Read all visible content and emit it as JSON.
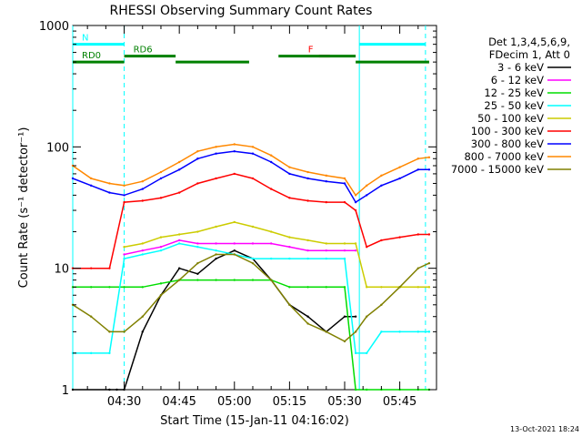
{
  "chart_data": {
    "type": "line",
    "title": "RHESSI Observing Summary Count Rates",
    "xlabel": "Start Time (15-Jan-11 04:16:02)",
    "ylabel": "Count Rate (s⁻¹ detector⁻¹)",
    "yscale": "log",
    "ylim": [
      1,
      1000
    ],
    "xlim": [
      "04:16",
      "05:55"
    ],
    "x_ticks": [
      "04:30",
      "04:45",
      "05:00",
      "05:15",
      "05:30",
      "05:45"
    ],
    "y_ticks": [
      "1",
      "10",
      "100",
      "1000"
    ],
    "legend_header": [
      "Det 1,3,4,5,6,9,",
      "FDecim 1, Att 0"
    ],
    "legend_position": "right",
    "footer_date": "13-Oct-2021 18:24",
    "series": [
      {
        "name": "3 - 6 keV",
        "color": "#000000",
        "x": [
          "04:16",
          "04:26",
          "04:28",
          "04:30",
          "04:35",
          "04:40",
          "04:45",
          "04:50",
          "04:55",
          "05:00",
          "05:05",
          "05:10",
          "05:15",
          "05:20",
          "05:25",
          "05:30",
          "05:33"
        ],
        "y": [
          1,
          1,
          1,
          1,
          3,
          6,
          10,
          9,
          12,
          14,
          12,
          8,
          5,
          4,
          3,
          4,
          4
        ]
      },
      {
        "name": "6 - 12 keV",
        "color": "#ff00ff",
        "x": [
          "04:30",
          "04:35",
          "04:40",
          "04:45",
          "04:50",
          "04:55",
          "05:00",
          "05:05",
          "05:10",
          "05:15",
          "05:20",
          "05:25",
          "05:30",
          "05:33"
        ],
        "y": [
          13,
          14,
          15,
          17,
          16,
          16,
          16,
          16,
          16,
          15,
          14,
          14,
          14,
          14
        ]
      },
      {
        "name": "12 - 25 keV",
        "color": "#00dd00",
        "x": [
          "04:16",
          "04:21",
          "04:26",
          "04:30",
          "04:35",
          "04:40",
          "04:45",
          "04:50",
          "04:55",
          "05:00",
          "05:05",
          "05:10",
          "05:15",
          "05:20",
          "05:25",
          "05:30",
          "05:33",
          "05:36",
          "05:40",
          "05:45",
          "05:50",
          "05:53"
        ],
        "y": [
          7,
          7,
          7,
          7,
          7,
          7.5,
          8,
          8,
          8,
          8,
          8,
          8,
          7,
          7,
          7,
          7,
          1,
          1,
          1,
          1,
          1,
          1
        ]
      },
      {
        "name": "25 - 50 keV",
        "color": "#00ffff",
        "x": [
          "04:16",
          "04:21",
          "04:26",
          "04:30",
          "04:35",
          "04:40",
          "04:45",
          "04:50",
          "04:55",
          "05:00",
          "05:05",
          "05:10",
          "05:15",
          "05:20",
          "05:25",
          "05:30",
          "05:33",
          "05:36",
          "05:40",
          "05:45",
          "05:50",
          "05:53"
        ],
        "y": [
          2,
          2,
          2,
          12,
          13,
          14,
          16,
          15,
          14,
          13,
          12,
          12,
          12,
          12,
          12,
          12,
          2,
          2,
          3,
          3,
          3,
          3
        ]
      },
      {
        "name": "50 - 100 keV",
        "color": "#cccc00",
        "x": [
          "04:30",
          "04:35",
          "04:40",
          "04:45",
          "04:50",
          "04:55",
          "05:00",
          "05:05",
          "05:10",
          "05:15",
          "05:20",
          "05:25",
          "05:30",
          "05:33",
          "05:36",
          "05:40",
          "05:45",
          "05:50",
          "05:53"
        ],
        "y": [
          15,
          16,
          18,
          19,
          20,
          22,
          24,
          22,
          20,
          18,
          17,
          16,
          16,
          16,
          7,
          7,
          7,
          7,
          7
        ]
      },
      {
        "name": "100 - 300 keV",
        "color": "#ff0000",
        "x": [
          "04:16",
          "04:21",
          "04:26",
          "04:30",
          "04:35",
          "04:40",
          "04:45",
          "04:50",
          "04:55",
          "05:00",
          "05:05",
          "05:10",
          "05:15",
          "05:20",
          "05:25",
          "05:30",
          "05:33",
          "05:36",
          "05:40",
          "05:45",
          "05:50",
          "05:53"
        ],
        "y": [
          10,
          10,
          10,
          35,
          36,
          38,
          42,
          50,
          55,
          60,
          55,
          45,
          38,
          36,
          35,
          35,
          30,
          15,
          17,
          18,
          19,
          19
        ]
      },
      {
        "name": "300 - 800 keV",
        "color": "#0000ff",
        "x": [
          "04:16",
          "04:21",
          "04:26",
          "04:30",
          "04:35",
          "04:40",
          "04:45",
          "04:50",
          "04:55",
          "05:00",
          "05:05",
          "05:10",
          "05:15",
          "05:20",
          "05:25",
          "05:30",
          "05:33",
          "05:36",
          "05:40",
          "05:45",
          "05:50",
          "05:53"
        ],
        "y": [
          55,
          48,
          42,
          40,
          45,
          55,
          65,
          80,
          88,
          92,
          88,
          75,
          60,
          55,
          52,
          50,
          35,
          40,
          48,
          55,
          65,
          65
        ]
      },
      {
        "name": "800 - 7000 keV",
        "color": "#ff8800",
        "x": [
          "04:16",
          "04:21",
          "04:26",
          "04:30",
          "04:35",
          "04:40",
          "04:45",
          "04:50",
          "04:55",
          "05:00",
          "05:05",
          "05:10",
          "05:15",
          "05:20",
          "05:25",
          "05:30",
          "05:33",
          "05:36",
          "05:40",
          "05:45",
          "05:50",
          "05:53"
        ],
        "y": [
          70,
          55,
          50,
          48,
          52,
          62,
          75,
          92,
          100,
          105,
          100,
          85,
          68,
          62,
          58,
          55,
          40,
          48,
          58,
          68,
          80,
          82
        ]
      },
      {
        "name": "7000 - 15000 keV",
        "color": "#808000",
        "x": [
          "04:16",
          "04:21",
          "04:26",
          "04:30",
          "04:35",
          "04:40",
          "04:45",
          "04:50",
          "04:55",
          "05:00",
          "05:05",
          "05:10",
          "05:15",
          "05:20",
          "05:25",
          "05:30",
          "05:33",
          "05:36",
          "05:40",
          "05:45",
          "05:50",
          "05:53"
        ],
        "y": [
          5,
          4,
          3,
          3,
          4,
          6,
          8,
          11,
          13,
          13,
          11,
          8,
          5,
          3.5,
          3,
          2.5,
          3,
          4,
          5,
          7,
          10,
          11
        ]
      }
    ],
    "annotations": [
      {
        "text": "N",
        "color": "#00ffff",
        "x_from": "04:16",
        "x_to": "04:30",
        "y": 700
      },
      {
        "text": "",
        "color": "#00ffff",
        "x_from": "05:34",
        "x_to": "05:52",
        "y": 700
      },
      {
        "text": "F",
        "color": "#ff0000",
        "x_from": "05:23",
        "x_to": "05:26",
        "y": 560
      },
      {
        "text": "RD0",
        "color": "#008000",
        "x_from": "04:16",
        "x_to": "04:30",
        "y": 500
      },
      {
        "text": "RD6",
        "color": "#008000",
        "x_from": "04:30",
        "x_to": "04:44",
        "y": 560
      },
      {
        "text": "",
        "color": "#008000",
        "x_from": "04:44",
        "x_to": "05:04",
        "y": 500
      },
      {
        "text": "",
        "color": "#008000",
        "x_from": "05:12",
        "x_to": "05:33",
        "y": 560
      },
      {
        "text": "",
        "color": "#008000",
        "x_from": "05:33",
        "x_to": "05:53",
        "y": 500
      }
    ],
    "night_markers": [
      "04:30",
      "05:52"
    ],
    "saa_markers": [
      "04:16",
      "05:34"
    ]
  }
}
